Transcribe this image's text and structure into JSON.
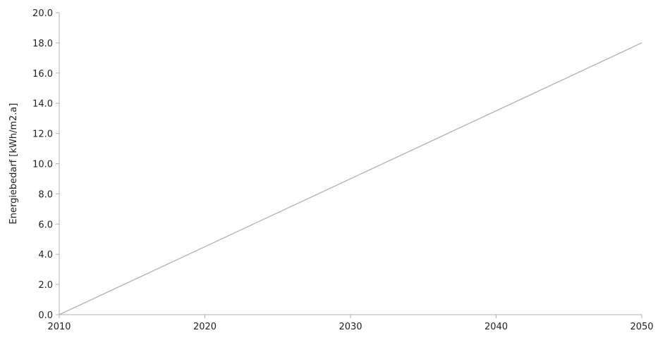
{
  "chart_data": {
    "type": "line",
    "title": "",
    "xlabel": "",
    "ylabel": "Energiebedarf  [kWh/m2.a]",
    "xlim": [
      2010,
      2050
    ],
    "ylim": [
      0,
      20
    ],
    "x_ticks": [
      "2010",
      "2020",
      "2030",
      "2040",
      "2050"
    ],
    "y_ticks": [
      "0.0",
      "2.0",
      "4.0",
      "6.0",
      "8.0",
      "10.0",
      "12.0",
      "14.0",
      "16.0",
      "18.0",
      "20.0"
    ],
    "grid": false,
    "legend": "none",
    "series": [
      {
        "color": "#b0b0b0",
        "x": [
          2010,
          2050
        ],
        "y": [
          0.0,
          18.0
        ]
      }
    ]
  }
}
